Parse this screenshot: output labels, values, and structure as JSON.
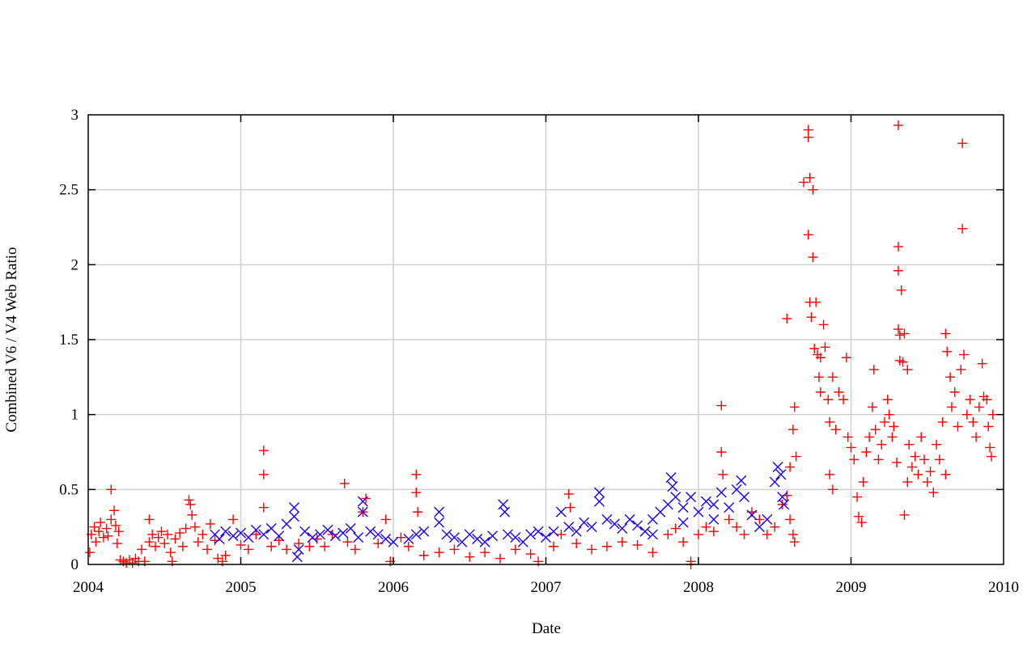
{
  "chart_data": {
    "type": "scatter",
    "title": "",
    "xlabel": "Date",
    "ylabel": "Combined V6 / V4 Web Ratio",
    "xlim": [
      2004,
      2010
    ],
    "ylim": [
      0,
      3
    ],
    "x_ticks": [
      "2004",
      "2005",
      "2006",
      "2007",
      "2008",
      "2009",
      "2010"
    ],
    "y_ticks": [
      "0",
      "0.5",
      "1",
      "1.5",
      "2",
      "2.5",
      "3"
    ],
    "grid": true,
    "legend": "none",
    "series": [
      {
        "color": "#ff0000",
        "marker": "plus",
        "points": [
          [
            2004.02,
            0.2
          ],
          [
            2004.04,
            0.25
          ],
          [
            2004.05,
            0.15
          ],
          [
            2004.07,
            0.22
          ],
          [
            2004.08,
            0.28
          ],
          [
            2004.1,
            0.18
          ],
          [
            2004.12,
            0.24
          ],
          [
            2004.13,
            0.19
          ],
          [
            2004.15,
            0.5
          ],
          [
            2004.15,
            0.3
          ],
          [
            2004.17,
            0.36
          ],
          [
            2004.18,
            0.26
          ],
          [
            2004.19,
            0.14
          ],
          [
            2004.2,
            0.22
          ],
          [
            2004.01,
            0.08
          ],
          [
            2004.21,
            0.03
          ],
          [
            2004.23,
            0.02
          ],
          [
            2004.25,
            0.01
          ],
          [
            2004.27,
            0.03
          ],
          [
            2004.29,
            0.01
          ],
          [
            2004.31,
            0.04
          ],
          [
            2004.33,
            0.02
          ],
          [
            2004.35,
            0.1
          ],
          [
            2004.37,
            0.02
          ],
          [
            2004.4,
            0.3
          ],
          [
            2004.4,
            0.15
          ],
          [
            2004.42,
            0.2
          ],
          [
            2004.44,
            0.12
          ],
          [
            2004.46,
            0.18
          ],
          [
            2004.48,
            0.22
          ],
          [
            2004.5,
            0.14
          ],
          [
            2004.52,
            0.2
          ],
          [
            2004.54,
            0.08
          ],
          [
            2004.55,
            0.02
          ],
          [
            2004.57,
            0.17
          ],
          [
            2004.6,
            0.21
          ],
          [
            2004.62,
            0.12
          ],
          [
            2004.64,
            0.24
          ],
          [
            2004.66,
            0.43
          ],
          [
            2004.67,
            0.4
          ],
          [
            2004.68,
            0.33
          ],
          [
            2004.7,
            0.25
          ],
          [
            2004.72,
            0.15
          ],
          [
            2004.75,
            0.2
          ],
          [
            2004.78,
            0.1
          ],
          [
            2004.8,
            0.27
          ],
          [
            2004.83,
            0.16
          ],
          [
            2004.85,
            0.04
          ],
          [
            2004.88,
            0.02
          ],
          [
            2004.9,
            0.06
          ],
          [
            2004.95,
            0.3
          ],
          [
            2005.0,
            0.13
          ],
          [
            2005.05,
            0.1
          ],
          [
            2005.1,
            0.2
          ],
          [
            2005.15,
            0.76
          ],
          [
            2005.15,
            0.6
          ],
          [
            2005.15,
            0.38
          ],
          [
            2005.2,
            0.12
          ],
          [
            2005.25,
            0.16
          ],
          [
            2005.3,
            0.1
          ],
          [
            2005.38,
            0.14
          ],
          [
            2005.45,
            0.12
          ],
          [
            2005.5,
            0.17
          ],
          [
            2005.55,
            0.12
          ],
          [
            2005.6,
            0.2
          ],
          [
            2005.68,
            0.54
          ],
          [
            2005.7,
            0.15
          ],
          [
            2005.75,
            0.1
          ],
          [
            2005.8,
            0.35
          ],
          [
            2005.82,
            0.44
          ],
          [
            2005.9,
            0.14
          ],
          [
            2005.95,
            0.3
          ],
          [
            2005.98,
            0.02
          ],
          [
            2006.05,
            0.18
          ],
          [
            2006.1,
            0.12
          ],
          [
            2006.15,
            0.6
          ],
          [
            2006.15,
            0.48
          ],
          [
            2006.16,
            0.35
          ],
          [
            2006.2,
            0.06
          ],
          [
            2006.3,
            0.08
          ],
          [
            2006.4,
            0.1
          ],
          [
            2006.5,
            0.05
          ],
          [
            2006.6,
            0.08
          ],
          [
            2006.7,
            0.04
          ],
          [
            2006.8,
            0.1
          ],
          [
            2006.9,
            0.07
          ],
          [
            2006.95,
            0.02
          ],
          [
            2007.05,
            0.12
          ],
          [
            2007.1,
            0.2
          ],
          [
            2007.15,
            0.47
          ],
          [
            2007.16,
            0.38
          ],
          [
            2007.2,
            0.14
          ],
          [
            2007.3,
            0.1
          ],
          [
            2007.4,
            0.12
          ],
          [
            2007.5,
            0.15
          ],
          [
            2007.6,
            0.13
          ],
          [
            2007.7,
            0.08
          ],
          [
            2007.8,
            0.2
          ],
          [
            2007.85,
            0.24
          ],
          [
            2007.9,
            0.15
          ],
          [
            2007.95,
            0.0
          ],
          [
            2007.95,
            0.02
          ],
          [
            2008.0,
            0.2
          ],
          [
            2008.05,
            0.25
          ],
          [
            2008.1,
            0.22
          ],
          [
            2008.15,
            1.06
          ],
          [
            2008.15,
            0.75
          ],
          [
            2008.16,
            0.6
          ],
          [
            2008.2,
            0.3
          ],
          [
            2008.25,
            0.25
          ],
          [
            2008.3,
            0.2
          ],
          [
            2008.35,
            0.35
          ],
          [
            2008.4,
            0.3
          ],
          [
            2008.45,
            0.2
          ],
          [
            2008.5,
            0.25
          ],
          [
            2008.55,
            0.4
          ],
          [
            2008.58,
            0.46
          ],
          [
            2008.6,
            0.3
          ],
          [
            2008.62,
            0.2
          ],
          [
            2008.63,
            0.15
          ],
          [
            2008.6,
            0.65
          ],
          [
            2008.62,
            0.9
          ],
          [
            2008.63,
            1.05
          ],
          [
            2008.64,
            0.72
          ],
          [
            2008.58,
            1.64
          ],
          [
            2008.72,
            2.9
          ],
          [
            2008.72,
            2.85
          ],
          [
            2008.69,
            2.55
          ],
          [
            2008.73,
            2.58
          ],
          [
            2008.75,
            2.5
          ],
          [
            2008.72,
            2.2
          ],
          [
            2008.75,
            2.05
          ],
          [
            2008.77,
            1.75
          ],
          [
            2008.74,
            1.65
          ],
          [
            2008.73,
            1.75
          ],
          [
            2008.76,
            1.44
          ],
          [
            2008.78,
            1.4
          ],
          [
            2008.8,
            1.38
          ],
          [
            2008.82,
            1.6
          ],
          [
            2008.83,
            1.45
          ],
          [
            2008.79,
            1.25
          ],
          [
            2008.8,
            1.15
          ],
          [
            2008.85,
            1.1
          ],
          [
            2008.86,
            0.95
          ],
          [
            2008.88,
            1.25
          ],
          [
            2008.9,
            0.9
          ],
          [
            2008.92,
            1.15
          ],
          [
            2008.95,
            1.1
          ],
          [
            2008.97,
            1.38
          ],
          [
            2008.98,
            0.85
          ],
          [
            2009.0,
            0.78
          ],
          [
            2008.86,
            0.6
          ],
          [
            2008.88,
            0.5
          ],
          [
            2009.02,
            0.7
          ],
          [
            2009.04,
            0.45
          ],
          [
            2009.05,
            0.32
          ],
          [
            2009.07,
            0.28
          ],
          [
            2009.08,
            0.55
          ],
          [
            2009.1,
            0.75
          ],
          [
            2009.12,
            0.85
          ],
          [
            2009.14,
            1.05
          ],
          [
            2009.15,
            1.3
          ],
          [
            2009.16,
            0.9
          ],
          [
            2009.18,
            0.7
          ],
          [
            2009.2,
            0.8
          ],
          [
            2009.22,
            0.95
          ],
          [
            2009.24,
            1.1
          ],
          [
            2009.25,
            1.0
          ],
          [
            2009.27,
            0.85
          ],
          [
            2009.28,
            0.92
          ],
          [
            2009.3,
            0.68
          ],
          [
            2009.31,
            2.93
          ],
          [
            2009.31,
            2.12
          ],
          [
            2009.31,
            1.96
          ],
          [
            2009.33,
            1.83
          ],
          [
            2009.31,
            1.57
          ],
          [
            2009.32,
            1.53
          ],
          [
            2009.32,
            1.36
          ],
          [
            2009.34,
            1.35
          ],
          [
            2009.35,
            1.54
          ],
          [
            2009.37,
            1.3
          ],
          [
            2009.35,
            0.33
          ],
          [
            2009.37,
            0.55
          ],
          [
            2009.38,
            0.8
          ],
          [
            2009.4,
            0.65
          ],
          [
            2009.42,
            0.72
          ],
          [
            2009.44,
            0.6
          ],
          [
            2009.46,
            0.85
          ],
          [
            2009.48,
            0.7
          ],
          [
            2009.5,
            0.55
          ],
          [
            2009.52,
            0.62
          ],
          [
            2009.54,
            0.48
          ],
          [
            2009.56,
            0.8
          ],
          [
            2009.58,
            0.7
          ],
          [
            2009.6,
            0.95
          ],
          [
            2009.62,
            0.6
          ],
          [
            2009.62,
            1.54
          ],
          [
            2009.63,
            1.42
          ],
          [
            2009.65,
            1.25
          ],
          [
            2009.66,
            1.05
          ],
          [
            2009.68,
            1.15
          ],
          [
            2009.7,
            0.92
          ],
          [
            2009.72,
            1.3
          ],
          [
            2009.73,
            2.81
          ],
          [
            2009.73,
            2.24
          ],
          [
            2009.74,
            1.4
          ],
          [
            2009.76,
            1.0
          ],
          [
            2009.78,
            1.1
          ],
          [
            2009.8,
            0.95
          ],
          [
            2009.82,
            0.85
          ],
          [
            2009.84,
            1.05
          ],
          [
            2009.86,
            1.34
          ],
          [
            2009.87,
            1.12
          ],
          [
            2009.89,
            1.1
          ],
          [
            2009.9,
            0.92
          ],
          [
            2009.92,
            0.72
          ],
          [
            2009.93,
            1.0
          ],
          [
            2009.91,
            0.78
          ]
        ]
      },
      {
        "color": "#1a00ff",
        "marker": "cross",
        "points": [
          [
            2004.83,
            0.2
          ],
          [
            2004.86,
            0.17
          ],
          [
            2004.9,
            0.22
          ],
          [
            2004.95,
            0.19
          ],
          [
            2005.0,
            0.21
          ],
          [
            2005.05,
            0.18
          ],
          [
            2005.1,
            0.23
          ],
          [
            2005.15,
            0.2
          ],
          [
            2005.2,
            0.24
          ],
          [
            2005.25,
            0.19
          ],
          [
            2005.3,
            0.27
          ],
          [
            2005.35,
            0.38
          ],
          [
            2005.35,
            0.32
          ],
          [
            2005.37,
            0.05
          ],
          [
            2005.38,
            0.1
          ],
          [
            2005.42,
            0.22
          ],
          [
            2005.47,
            0.18
          ],
          [
            2005.52,
            0.2
          ],
          [
            2005.57,
            0.23
          ],
          [
            2005.62,
            0.19
          ],
          [
            2005.67,
            0.21
          ],
          [
            2005.72,
            0.24
          ],
          [
            2005.77,
            0.18
          ],
          [
            2005.8,
            0.42
          ],
          [
            2005.8,
            0.35
          ],
          [
            2005.85,
            0.22
          ],
          [
            2005.9,
            0.2
          ],
          [
            2005.95,
            0.17
          ],
          [
            2006.0,
            0.15
          ],
          [
            2006.1,
            0.17
          ],
          [
            2006.15,
            0.2
          ],
          [
            2006.2,
            0.22
          ],
          [
            2006.3,
            0.35
          ],
          [
            2006.3,
            0.28
          ],
          [
            2006.35,
            0.2
          ],
          [
            2006.4,
            0.18
          ],
          [
            2006.45,
            0.15
          ],
          [
            2006.5,
            0.2
          ],
          [
            2006.55,
            0.17
          ],
          [
            2006.6,
            0.15
          ],
          [
            2006.65,
            0.19
          ],
          [
            2006.72,
            0.4
          ],
          [
            2006.73,
            0.35
          ],
          [
            2006.75,
            0.2
          ],
          [
            2006.8,
            0.18
          ],
          [
            2006.85,
            0.15
          ],
          [
            2006.9,
            0.2
          ],
          [
            2006.95,
            0.22
          ],
          [
            2007.0,
            0.18
          ],
          [
            2007.05,
            0.22
          ],
          [
            2007.1,
            0.35
          ],
          [
            2007.15,
            0.25
          ],
          [
            2007.2,
            0.22
          ],
          [
            2007.25,
            0.28
          ],
          [
            2007.3,
            0.25
          ],
          [
            2007.35,
            0.48
          ],
          [
            2007.35,
            0.42
          ],
          [
            2007.4,
            0.3
          ],
          [
            2007.45,
            0.27
          ],
          [
            2007.5,
            0.24
          ],
          [
            2007.55,
            0.3
          ],
          [
            2007.6,
            0.26
          ],
          [
            2007.65,
            0.22
          ],
          [
            2007.7,
            0.3
          ],
          [
            2007.75,
            0.35
          ],
          [
            2007.8,
            0.4
          ],
          [
            2007.82,
            0.58
          ],
          [
            2007.83,
            0.52
          ],
          [
            2007.85,
            0.45
          ],
          [
            2007.9,
            0.38
          ],
          [
            2007.95,
            0.45
          ],
          [
            2008.0,
            0.35
          ],
          [
            2008.05,
            0.42
          ],
          [
            2008.1,
            0.4
          ],
          [
            2008.15,
            0.48
          ],
          [
            2008.2,
            0.38
          ],
          [
            2008.25,
            0.5
          ],
          [
            2008.28,
            0.56
          ],
          [
            2008.3,
            0.45
          ],
          [
            2008.35,
            0.33
          ],
          [
            2008.4,
            0.25
          ],
          [
            2008.45,
            0.3
          ],
          [
            2008.5,
            0.55
          ],
          [
            2008.52,
            0.65
          ],
          [
            2008.54,
            0.6
          ],
          [
            2008.55,
            0.45
          ],
          [
            2008.56,
            0.4
          ],
          [
            2007.7,
            0.2
          ],
          [
            2007.9,
            0.28
          ],
          [
            2008.1,
            0.3
          ]
        ]
      }
    ]
  }
}
